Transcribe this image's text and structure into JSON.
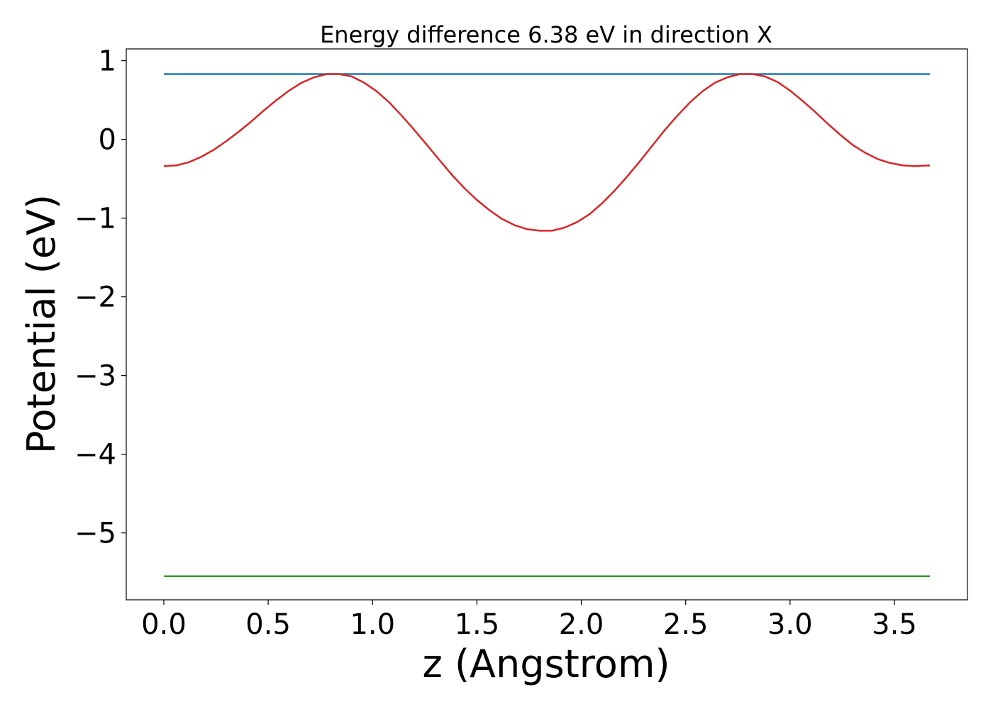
{
  "chart_data": {
    "type": "line",
    "title": "Energy difference 6.38 eV in direction X",
    "xlabel": "z (Angstrom)",
    "ylabel": "Potential (eV)",
    "xlim": [
      -0.18,
      3.85
    ],
    "ylim": [
      -5.85,
      1.15
    ],
    "xticks": [
      0.0,
      0.5,
      1.0,
      1.5,
      2.0,
      2.5,
      3.0,
      3.5
    ],
    "xtick_labels": [
      "0.0",
      "0.5",
      "1.0",
      "1.5",
      "2.0",
      "2.5",
      "3.0",
      "3.5"
    ],
    "yticks": [
      1,
      0,
      -1,
      -2,
      -3,
      -4,
      -5
    ],
    "ytick_labels": [
      "1",
      "0",
      "−1",
      "−2",
      "−3",
      "−4",
      "−5"
    ],
    "grid": false,
    "series": [
      {
        "color": "#1f77b4",
        "x": [
          0.0,
          3.67
        ],
        "y": [
          0.83,
          0.83
        ]
      },
      {
        "color": "#2ca02c",
        "x": [
          0.0,
          3.67
        ],
        "y": [
          -5.55,
          -5.55
        ]
      },
      {
        "color": "#d62728",
        "x": [
          0.0,
          0.06,
          0.12,
          0.18,
          0.24,
          0.3,
          0.36,
          0.42,
          0.48,
          0.54,
          0.6,
          0.66,
          0.72,
          0.78,
          0.84,
          0.9,
          0.96,
          1.02,
          1.08,
          1.14,
          1.2,
          1.26,
          1.32,
          1.38,
          1.44,
          1.5,
          1.56,
          1.62,
          1.68,
          1.74,
          1.8,
          1.86,
          1.92,
          1.98,
          2.04,
          2.1,
          2.16,
          2.22,
          2.28,
          2.34,
          2.4,
          2.46,
          2.52,
          2.58,
          2.64,
          2.7,
          2.76,
          2.82,
          2.88,
          2.94,
          3.0,
          3.06,
          3.12,
          3.18,
          3.24,
          3.3,
          3.36,
          3.42,
          3.48,
          3.54,
          3.6,
          3.67
        ],
        "y": [
          -0.34,
          -0.33,
          -0.29,
          -0.22,
          -0.13,
          -0.02,
          0.1,
          0.23,
          0.37,
          0.5,
          0.62,
          0.72,
          0.79,
          0.83,
          0.83,
          0.8,
          0.72,
          0.61,
          0.47,
          0.3,
          0.12,
          -0.07,
          -0.26,
          -0.45,
          -0.62,
          -0.77,
          -0.9,
          -1.01,
          -1.09,
          -1.14,
          -1.16,
          -1.16,
          -1.12,
          -1.05,
          -0.95,
          -0.81,
          -0.65,
          -0.47,
          -0.28,
          -0.08,
          0.12,
          0.3,
          0.47,
          0.61,
          0.72,
          0.79,
          0.83,
          0.83,
          0.8,
          0.73,
          0.62,
          0.49,
          0.35,
          0.2,
          0.06,
          -0.07,
          -0.17,
          -0.25,
          -0.3,
          -0.33,
          -0.34,
          -0.33
        ]
      }
    ]
  }
}
